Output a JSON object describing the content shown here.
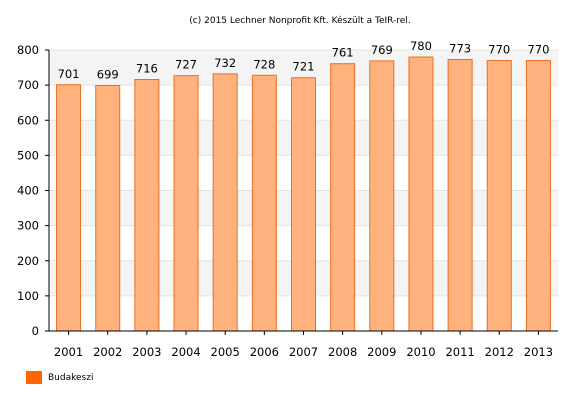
{
  "chart_data": {
    "type": "bar",
    "title": "(c) 2015 Lechner Nonprofit Kft. Készült a TeIR-rel.",
    "categories": [
      "2001",
      "2002",
      "2003",
      "2004",
      "2005",
      "2006",
      "2007",
      "2008",
      "2009",
      "2010",
      "2011",
      "2012",
      "2013"
    ],
    "series": [
      {
        "name": "Budakeszi",
        "values": [
          701,
          699,
          716,
          727,
          732,
          728,
          721,
          761,
          769,
          780,
          773,
          770,
          770
        ]
      }
    ],
    "ylim": [
      0,
      800
    ],
    "yticks": [
      0,
      100,
      200,
      300,
      400,
      500,
      600,
      700,
      800
    ],
    "grid": true,
    "legend_position": "bottom-left",
    "colors": {
      "bar_fill": "#ffb27e",
      "bar_stroke": "#e8701e",
      "legend_swatch": "#ff6600"
    }
  }
}
